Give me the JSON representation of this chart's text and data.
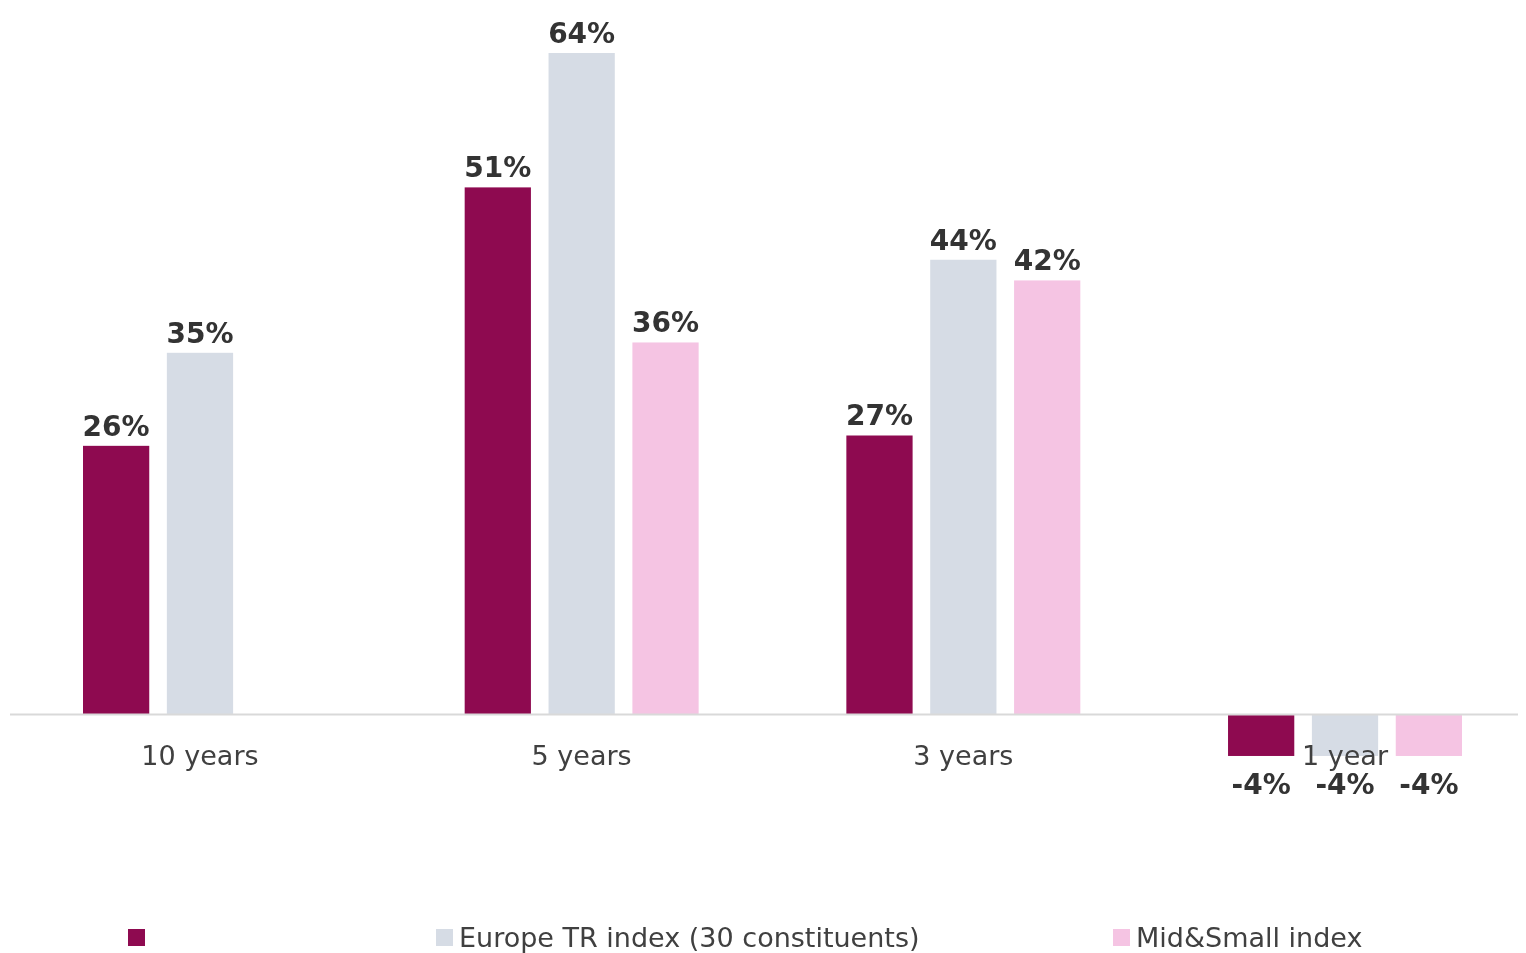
{
  "chart_data": {
    "type": "bar",
    "categories": [
      "10 years",
      "5 years",
      "3 years",
      "1 year"
    ],
    "series": [
      {
        "color": "#8e0a50",
        "values": [
          26,
          51,
          27,
          -4
        ],
        "value_labels": [
          "26%",
          "51%",
          "27%",
          "-4%"
        ]
      },
      {
        "name": "Europe TR index (30 constituents)",
        "color": "#d6dce5",
        "values": [
          35,
          64,
          44,
          -4
        ],
        "value_labels": [
          "35%",
          "64%",
          "44%",
          "-4%"
        ]
      },
      {
        "name": "Mid&Small index",
        "color": "#f5c4e3",
        "values": [
          null,
          36,
          42,
          -4
        ],
        "value_labels": [
          null,
          "36%",
          "42%",
          "-4%"
        ]
      }
    ],
    "legend": "bottom"
  }
}
